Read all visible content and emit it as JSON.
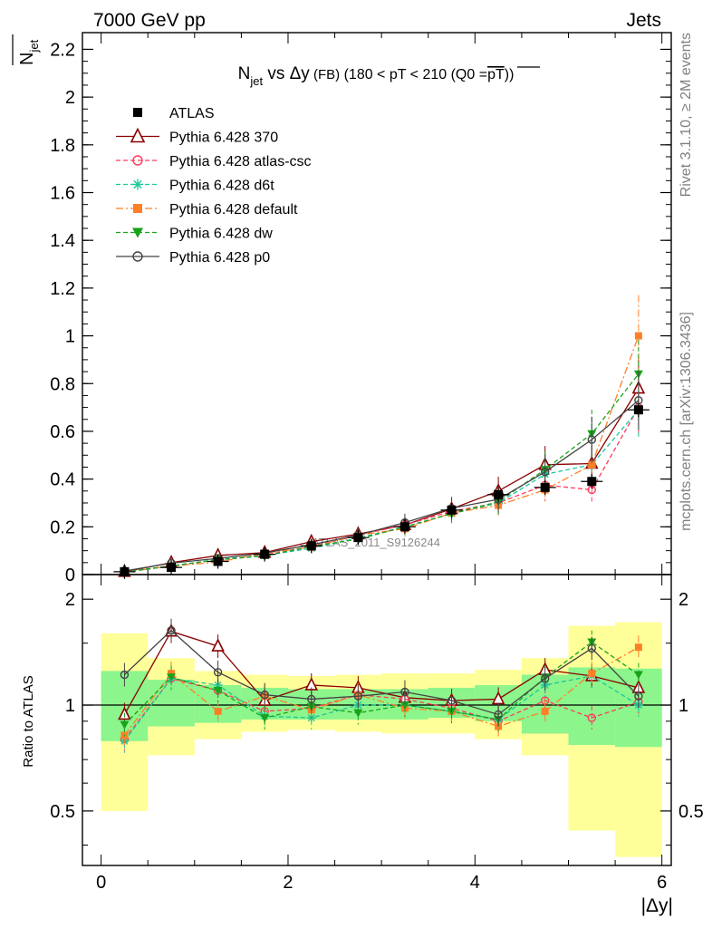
{
  "header": {
    "left": "7000 GeV pp",
    "right": "Jets",
    "side_top": "Rivet 3.1.10, ≥ 2M events",
    "side_bottom": "mcplots.cern.ch [arXiv:1306.3436]",
    "watermark": "ATLAS_2011_S9126244"
  },
  "colors": {
    "atlas": "#000000",
    "p370": "#8b0000",
    "atlas_csc": "#ff3b5c",
    "d6t": "#1ec79b",
    "default": "#ff7f27",
    "dw": "#17a31a",
    "p0": "#444444",
    "band_yellow": "#ffff99",
    "band_green": "#8cf58c"
  },
  "chart_data": [
    {
      "type": "line",
      "title_parts": {
        "main": "N",
        "sub": "jet",
        "rest": " vs Δy",
        "fb": " (FB)",
        "tail": " (180 < pT < 210 (Q0 =",
        "over": "pT",
        "close": "))"
      },
      "ylabel_main": "N",
      "ylabel_sub": "jet",
      "xlim": [
        -0.2,
        6.1
      ],
      "ylim": [
        0,
        2.27
      ],
      "yticks": [
        0,
        0.2,
        0.4,
        0.6,
        0.8,
        1,
        1.2,
        1.4,
        1.6,
        1.8,
        2,
        2.2
      ],
      "ytick_labels": [
        "0",
        "0.2",
        "0.4",
        "0.6",
        "0.8",
        "1",
        "1.2",
        "1.4",
        "1.6",
        "1.8",
        "2",
        "2.2"
      ],
      "x": [
        0.25,
        0.75,
        1.25,
        1.75,
        2.25,
        2.75,
        3.25,
        3.75,
        4.25,
        4.75,
        5.25,
        5.75
      ],
      "series": [
        {
          "name": "ATLAS",
          "key": "atlas",
          "marker": "square",
          "line": "none",
          "values": [
            0.012,
            0.03,
            0.055,
            0.085,
            0.12,
            0.155,
            0.2,
            0.27,
            0.335,
            0.365,
            0.39,
            0.69
          ]
        },
        {
          "name": "Pythia 6.428 370",
          "key": "p370",
          "marker": "triangle-open",
          "line": "solid",
          "values": [
            0.012,
            0.05,
            0.08,
            0.092,
            0.138,
            0.17,
            0.208,
            0.275,
            0.35,
            0.46,
            0.465,
            0.78
          ]
        },
        {
          "name": "Pythia 6.428 atlas-csc",
          "key": "atlas_csc",
          "marker": "circle-open",
          "line": "dashed",
          "values": [
            0.012,
            0.036,
            0.062,
            0.082,
            0.118,
            0.165,
            0.208,
            0.265,
            0.3,
            0.375,
            0.355,
            0.7
          ]
        },
        {
          "name": "Pythia 6.428 d6t",
          "key": "d6t",
          "marker": "star",
          "line": "dashed",
          "values": [
            0.01,
            0.036,
            0.064,
            0.08,
            0.11,
            0.153,
            0.2,
            0.255,
            0.3,
            0.42,
            0.46,
            0.69
          ]
        },
        {
          "name": "Pythia 6.428 default",
          "key": "default",
          "marker": "square",
          "line": "dashdot",
          "values": [
            0.01,
            0.036,
            0.052,
            0.09,
            0.115,
            0.165,
            0.192,
            0.258,
            0.29,
            0.355,
            0.46,
            1.0
          ]
        },
        {
          "name": "Pythia 6.428 dw",
          "key": "dw",
          "marker": "triangle-down",
          "line": "dashed",
          "values": [
            0.011,
            0.036,
            0.062,
            0.078,
            0.118,
            0.148,
            0.2,
            0.255,
            0.305,
            0.44,
            0.59,
            0.84
          ]
        },
        {
          "name": "Pythia 6.428 p0",
          "key": "p0",
          "marker": "circle-open",
          "line": "solid",
          "values": [
            0.015,
            0.048,
            0.068,
            0.09,
            0.125,
            0.165,
            0.218,
            0.278,
            0.315,
            0.43,
            0.565,
            0.73
          ]
        }
      ]
    },
    {
      "type": "line",
      "ylabel": "Ratio to ATLAS",
      "xlabel": "|Δy|",
      "xlim": [
        -0.2,
        6.1
      ],
      "ylim": [
        0.35,
        2.35
      ],
      "yscale": "log",
      "yticks": [
        0.5,
        1,
        2
      ],
      "ytick_labels": [
        "0.5",
        "1",
        "2"
      ],
      "xticks": [
        0,
        2,
        4,
        6
      ],
      "xtick_labels": [
        "0",
        "2",
        "4",
        "6"
      ],
      "x": [
        0.25,
        0.75,
        1.25,
        1.75,
        2.25,
        2.75,
        3.25,
        3.75,
        4.25,
        4.75,
        5.25,
        5.75
      ],
      "bands": {
        "green_low": [
          0.79,
          0.87,
          0.89,
          0.91,
          0.91,
          0.91,
          0.91,
          0.92,
          0.9,
          0.83,
          0.77,
          0.76
        ],
        "green_high": [
          1.25,
          1.18,
          1.14,
          1.12,
          1.11,
          1.11,
          1.11,
          1.12,
          1.14,
          1.22,
          1.28,
          1.27
        ],
        "yellow_low": [
          0.5,
          0.72,
          0.8,
          0.84,
          0.85,
          0.84,
          0.83,
          0.83,
          0.8,
          0.72,
          0.44,
          0.37
        ],
        "yellow_high": [
          1.6,
          1.36,
          1.25,
          1.22,
          1.21,
          1.22,
          1.23,
          1.23,
          1.26,
          1.36,
          1.68,
          1.72
        ]
      },
      "series": [
        {
          "name": "Pythia 6.428 370",
          "key": "p370",
          "marker": "triangle-open",
          "line": "solid",
          "values": [
            0.94,
            1.62,
            1.47,
            1.03,
            1.14,
            1.12,
            1.05,
            1.03,
            1.04,
            1.26,
            1.21,
            1.12
          ]
        },
        {
          "name": "Pythia 6.428 atlas-csc",
          "key": "atlas_csc",
          "marker": "circle-open",
          "line": "dashed",
          "values": [
            0.8,
            1.19,
            1.1,
            0.96,
            0.98,
            1.07,
            1.04,
            0.98,
            0.9,
            1.03,
            0.92,
            1.02
          ]
        },
        {
          "name": "Pythia 6.428 d6t",
          "key": "d6t",
          "marker": "star",
          "line": "dashed",
          "values": [
            0.79,
            1.19,
            1.14,
            0.93,
            0.92,
            1.0,
            1.0,
            0.96,
            0.91,
            1.14,
            1.21,
            1.0
          ]
        },
        {
          "name": "Pythia 6.428 default",
          "key": "default",
          "marker": "square",
          "line": "dashdot",
          "values": [
            0.82,
            1.23,
            0.96,
            1.06,
            0.97,
            1.07,
            0.98,
            0.96,
            0.87,
            0.96,
            1.23,
            1.46
          ]
        },
        {
          "name": "Pythia 6.428 dw",
          "key": "dw",
          "marker": "triangle-down",
          "line": "dashed",
          "values": [
            0.88,
            1.2,
            1.1,
            0.92,
            0.99,
            0.95,
            1.0,
            0.96,
            0.91,
            1.2,
            1.51,
            1.22
          ]
        },
        {
          "name": "Pythia 6.428 p0",
          "key": "p0",
          "marker": "circle-open",
          "line": "solid",
          "values": [
            1.22,
            1.63,
            1.24,
            1.07,
            1.04,
            1.06,
            1.09,
            1.03,
            0.94,
            1.19,
            1.45,
            1.06
          ]
        }
      ]
    }
  ]
}
